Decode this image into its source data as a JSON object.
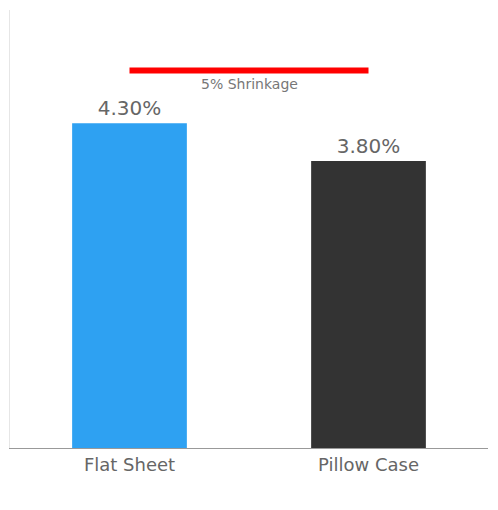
{
  "chart_data": {
    "type": "bar",
    "categories": [
      "Flat Sheet",
      "Pillow Case"
    ],
    "values": [
      4.3,
      3.8
    ],
    "value_labels": [
      "4.30%",
      "3.80%"
    ],
    "data_labels": true,
    "colors": [
      "#2ea1f2",
      "#333333"
    ],
    "ylim": [
      0,
      5.8
    ],
    "yticks": [],
    "tick_labels": "x",
    "grid": false,
    "reference_line": {
      "y": 5,
      "label": "5% Shrinkage",
      "color": "#ff0000"
    }
  }
}
